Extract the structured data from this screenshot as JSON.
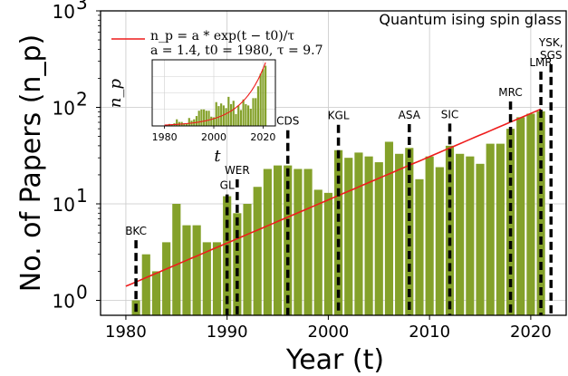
{
  "chart_data": {
    "type": "bar",
    "title": "Quantum ising spin glass",
    "xlabel": "Year (t)",
    "ylabel": "No. of Papers (n_p)",
    "xlim": [
      1977.5,
      2023.5
    ],
    "ylim": [
      0.7,
      1000
    ],
    "yscale": "log",
    "grid": true,
    "bar_color": "#84a12a",
    "fit_color": "#ee1c1c",
    "xticks": [
      1980,
      1990,
      2000,
      2010,
      2020
    ],
    "xtick_labels": [
      "1980",
      "1990",
      "2000",
      "2010",
      "2020"
    ],
    "yticks": [
      {
        "value": 1,
        "base": "10",
        "exp": "0"
      },
      {
        "value": 10,
        "base": "10",
        "exp": "1"
      },
      {
        "value": 100,
        "base": "10",
        "exp": "2"
      },
      {
        "value": 1000,
        "base": "10",
        "exp": "3"
      }
    ],
    "years": [
      1981,
      1982,
      1983,
      1984,
      1985,
      1986,
      1987,
      1988,
      1989,
      1990,
      1991,
      1992,
      1993,
      1994,
      1995,
      1996,
      1997,
      1998,
      1999,
      2000,
      2001,
      2002,
      2003,
      2004,
      2005,
      2006,
      2007,
      2008,
      2009,
      2010,
      2011,
      2012,
      2013,
      2014,
      2015,
      2016,
      2017,
      2018,
      2019,
      2020,
      2021
    ],
    "values": [
      1,
      3,
      2,
      4,
      10,
      6,
      6,
      4,
      4,
      12,
      8,
      10,
      15,
      23,
      25,
      25,
      23,
      23,
      14,
      13,
      36,
      30,
      34,
      31,
      27,
      44,
      33,
      38,
      18,
      31,
      24,
      40,
      33,
      31,
      26,
      42,
      42,
      60,
      79,
      86,
      91
    ],
    "fit": {
      "label": "n_p = a * exp(t − t0)/τ",
      "params_label": "a = 1.4, t0 = 1980, τ = 9.7",
      "a": 1.4,
      "t0": 1980,
      "tau": 9.7,
      "x_range": [
        1980,
        2021
      ]
    },
    "annotations": [
      {
        "label": "BKC",
        "year": 1981,
        "y_top": 4.2
      },
      {
        "label": "GL",
        "year": 1990,
        "y_top": 12.5
      },
      {
        "label": "WER",
        "year": 1991,
        "y_top": 18
      },
      {
        "label": "CDS",
        "year": 1996,
        "y_top": 58
      },
      {
        "label": "KGL",
        "year": 2001,
        "y_top": 66
      },
      {
        "label": "ASA",
        "year": 2008,
        "y_top": 67
      },
      {
        "label": "SIC",
        "year": 2012,
        "y_top": 68
      },
      {
        "label": "MRC",
        "year": 2018,
        "y_top": 115
      },
      {
        "label": "LMR",
        "year": 2021,
        "y_top": 235
      },
      {
        "label": "YSK,\nSGS",
        "year": 2022,
        "y_top": 280
      }
    ],
    "inset": {
      "xlabel": "t",
      "ylabel": "n_p",
      "xlim": [
        1975,
        2025
      ],
      "ylim": [
        0,
        100
      ],
      "xticks": [
        1980,
        2000,
        2020
      ],
      "xtick_labels": [
        "1980",
        "2000",
        "2020"
      ]
    }
  }
}
